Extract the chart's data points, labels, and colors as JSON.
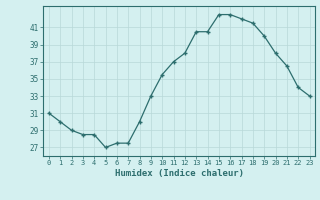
{
  "x": [
    0,
    1,
    2,
    3,
    4,
    5,
    6,
    7,
    8,
    9,
    10,
    11,
    12,
    13,
    14,
    15,
    16,
    17,
    18,
    19,
    20,
    21,
    22,
    23
  ],
  "y": [
    31,
    30,
    29,
    28.5,
    28.5,
    27,
    27.5,
    27.5,
    30,
    33,
    35.5,
    37,
    38,
    40.5,
    40.5,
    42.5,
    42.5,
    42,
    41.5,
    40,
    38,
    36.5,
    34,
    33
  ],
  "xlabel": "Humidex (Indice chaleur)",
  "ylim": [
    26,
    43.5
  ],
  "xlim": [
    -0.5,
    23.5
  ],
  "yticks": [
    27,
    29,
    31,
    33,
    35,
    37,
    39,
    41
  ],
  "xticks": [
    0,
    1,
    2,
    3,
    4,
    5,
    6,
    7,
    8,
    9,
    10,
    11,
    12,
    13,
    14,
    15,
    16,
    17,
    18,
    19,
    20,
    21,
    22,
    23
  ],
  "xtick_labels": [
    "0",
    "1",
    "2",
    "3",
    "4",
    "5",
    "6",
    "7",
    "8",
    "9",
    "10",
    "11",
    "12",
    "13",
    "14",
    "15",
    "16",
    "17",
    "18",
    "19",
    "20",
    "21",
    "22",
    "23"
  ],
  "line_color": "#2d6e6e",
  "marker_color": "#2d6e6e",
  "bg_color": "#d4f0f0",
  "grid_color": "#b8d8d8",
  "axis_color": "#2d6e6e"
}
